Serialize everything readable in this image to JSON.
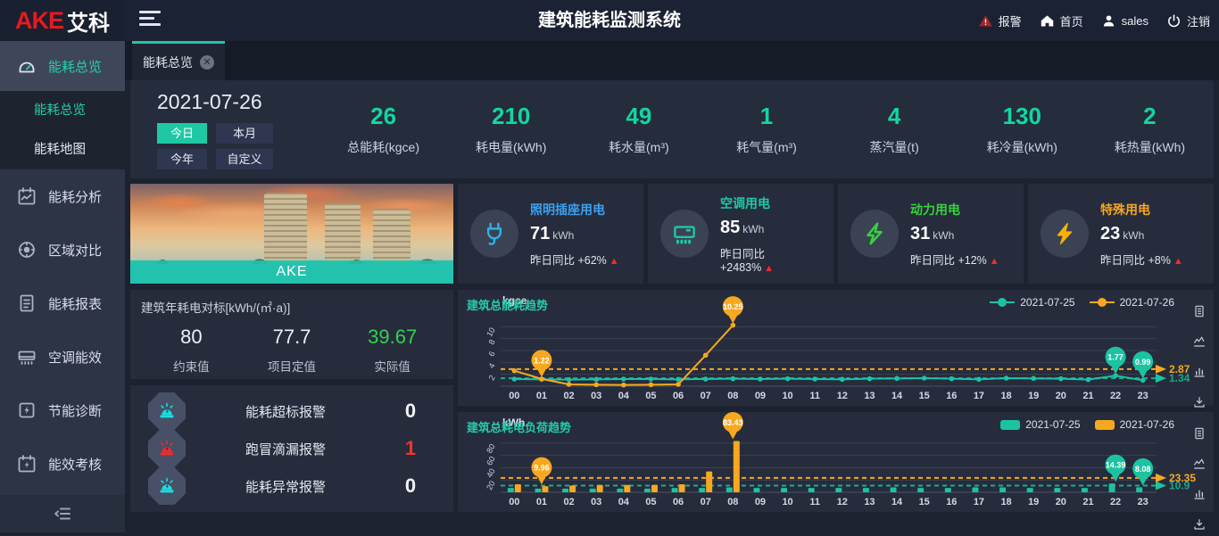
{
  "topbar": {
    "logo_en": "AKE",
    "logo_cn": "艾科",
    "title": "建筑能耗监测系统",
    "alarm": "报警",
    "home": "首页",
    "user": "sales",
    "logout": "注销"
  },
  "sidebar": {
    "items": [
      {
        "label": "能耗总览",
        "icon": "gauge",
        "active": true
      },
      {
        "label": "能耗分析",
        "icon": "analysis"
      },
      {
        "label": "区域对比",
        "icon": "compare"
      },
      {
        "label": "能耗报表",
        "icon": "report"
      },
      {
        "label": "空调能效",
        "icon": "ac"
      },
      {
        "label": "节能诊断",
        "icon": "diagnosis"
      },
      {
        "label": "能效考核",
        "icon": "assess"
      }
    ],
    "submenu": [
      {
        "label": "能耗总览",
        "active": true
      },
      {
        "label": "能耗地图",
        "active": false
      }
    ]
  },
  "tab": {
    "label": "能耗总览"
  },
  "filters": {
    "date": "2021-07-26",
    "options": [
      {
        "label": "今日",
        "active": true
      },
      {
        "label": "本月",
        "active": false
      },
      {
        "label": "今年",
        "active": false
      },
      {
        "label": "自定义",
        "active": false
      }
    ]
  },
  "stats": [
    {
      "value": "26",
      "label": "总能耗(kgce)"
    },
    {
      "value": "210",
      "label": "耗电量(kWh)"
    },
    {
      "value": "49",
      "label": "耗水量(m³)"
    },
    {
      "value": "1",
      "label": "耗气量(m³)"
    },
    {
      "value": "4",
      "label": "蒸汽量(t)"
    },
    {
      "value": "130",
      "label": "耗冷量(kWh)"
    },
    {
      "value": "2",
      "label": "耗热量(kWh)"
    }
  ],
  "building": {
    "caption": "AKE"
  },
  "usage_cards": [
    {
      "title": "照明插座用电",
      "value": "71",
      "unit": "kWh",
      "compare_label": "昨日同比",
      "compare": "+62%",
      "color": "#3ba0f0",
      "icon": "plug"
    },
    {
      "title": "空调用电",
      "value": "85",
      "unit": "kWh",
      "compare_label": "昨日同比",
      "compare": "+2483%",
      "color": "#1fc8a5",
      "icon": "accard"
    },
    {
      "title": "动力用电",
      "value": "31",
      "unit": "kWh",
      "compare_label": "昨日同比",
      "compare": "+12%",
      "color": "#35d23c",
      "icon": "boltg"
    },
    {
      "title": "特殊用电",
      "value": "23",
      "unit": "kWh",
      "compare_label": "昨日同比",
      "compare": "+8%",
      "color": "#f5a623",
      "icon": "bolto"
    }
  ],
  "benchmark": {
    "title": "建筑年耗电对标[kWh/(㎡·a)]",
    "items": [
      {
        "value": "80",
        "label": "约束值",
        "highlight": false
      },
      {
        "value": "77.7",
        "label": "项目定值",
        "highlight": false
      },
      {
        "value": "39.67",
        "label": "实际值",
        "highlight": true
      }
    ]
  },
  "alarms": [
    {
      "label": "能耗超标报警",
      "count": "0",
      "color": "#1adde0",
      "red": false
    },
    {
      "label": "跑冒滴漏报警",
      "count": "1",
      "color": "#f02b2b",
      "red": true
    },
    {
      "label": "能耗异常报警",
      "count": "0",
      "color": "#1adde0",
      "red": false
    }
  ],
  "chart_toolbox": [
    "data-view",
    "line-switch",
    "bar-switch",
    "download"
  ],
  "chart_data": [
    {
      "type": "line",
      "title": "建筑总能耗趋势",
      "unit": "kgce",
      "categories": [
        "00",
        "01",
        "02",
        "03",
        "04",
        "05",
        "06",
        "07",
        "08",
        "09",
        "10",
        "11",
        "12",
        "13",
        "14",
        "15",
        "16",
        "17",
        "18",
        "19",
        "20",
        "21",
        "22",
        "23"
      ],
      "ylim": [
        0,
        12
      ],
      "yticks": [
        2,
        4,
        6,
        8,
        10
      ],
      "legend_style": "line",
      "legend_position": "top-right",
      "grid": true,
      "series": [
        {
          "name": "2021-07-25",
          "color": "#1cc3a3",
          "values": [
            1.2,
            1.15,
            1.1,
            1.15,
            1.2,
            1.2,
            1.15,
            1.2,
            1.25,
            1.2,
            1.25,
            1.2,
            1.15,
            1.25,
            1.3,
            1.35,
            1.25,
            1.15,
            1.35,
            1.3,
            1.25,
            1.1,
            1.77,
            0.99
          ],
          "point_labels": {
            "22": "1.77",
            "23": "0.99"
          },
          "avg": 1.34,
          "avg_label": "1.34"
        },
        {
          "name": "2021-07-26",
          "color": "#f7a820",
          "values": [
            2.6,
            1.22,
            0.3,
            0.25,
            0.2,
            0.25,
            0.3,
            5.2,
            10.25,
            null,
            null,
            null,
            null,
            null,
            null,
            null,
            null,
            null,
            null,
            null,
            null,
            null,
            null,
            null
          ],
          "point_labels": {
            "1": "1.22",
            "8": "10.25"
          },
          "avg": 2.87,
          "avg_label": "2.87"
        }
      ]
    },
    {
      "type": "bar",
      "title": "建筑总耗电负荷趋势",
      "unit": "kWh",
      "categories": [
        "00",
        "01",
        "02",
        "03",
        "04",
        "05",
        "06",
        "07",
        "08",
        "09",
        "10",
        "11",
        "12",
        "13",
        "14",
        "15",
        "16",
        "17",
        "18",
        "19",
        "20",
        "21",
        "22",
        "23"
      ],
      "ylim": [
        0,
        90
      ],
      "yticks": [
        20,
        40,
        60,
        80
      ],
      "legend_style": "rect",
      "legend_position": "top-right",
      "grid": true,
      "series": [
        {
          "name": "2021-07-25",
          "color": "#1cc3a3",
          "values": [
            7,
            6,
            6,
            6,
            6,
            6,
            7,
            7,
            8,
            7,
            7,
            7,
            7,
            7,
            8,
            7,
            7,
            8,
            8,
            7,
            7,
            7,
            14.39,
            8.08
          ],
          "point_labels": {
            "22": "14.39",
            "23": "8.08"
          },
          "avg": 10.9,
          "avg_label": "10.9"
        },
        {
          "name": "2021-07-26",
          "color": "#f7a820",
          "values": [
            13,
            9.96,
            11,
            12,
            12,
            12,
            13,
            34,
            83.43,
            null,
            null,
            null,
            null,
            null,
            null,
            null,
            null,
            null,
            null,
            null,
            null,
            null,
            null,
            null
          ],
          "point_labels": {
            "1": "9.96",
            "8": "83.43"
          },
          "avg": 23.35,
          "avg_label": "23.35"
        }
      ]
    }
  ]
}
